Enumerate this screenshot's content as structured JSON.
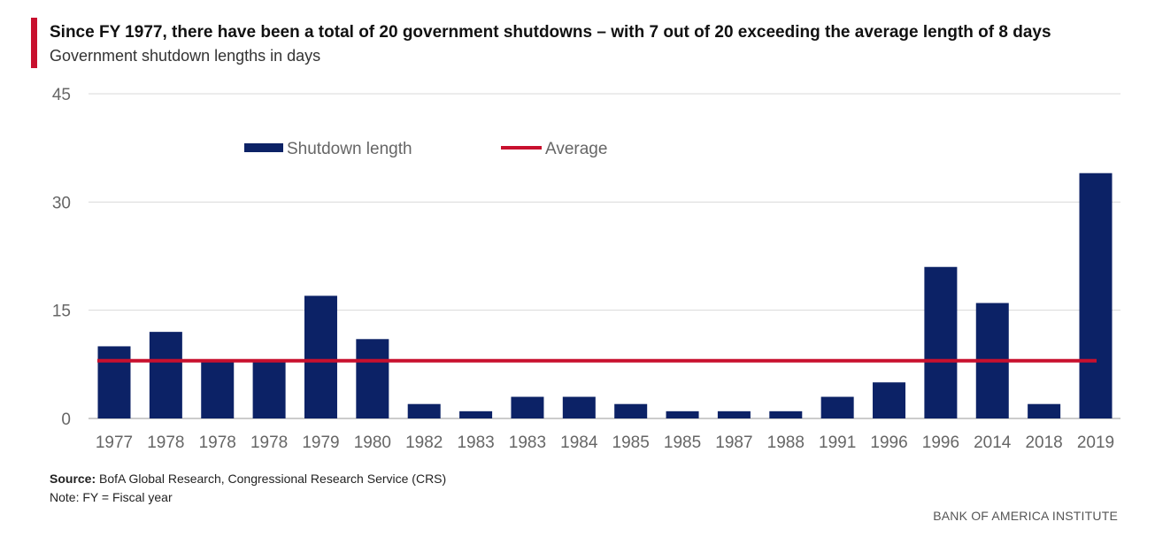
{
  "header": {
    "title": "Since FY 1977, there have been a total of 20 government shutdowns – with 7 out of 20 exceeding the average length of 8 days",
    "subtitle": "Government shutdown lengths in days"
  },
  "footer": {
    "source_label": "Source:",
    "source_text": " BofA Global Research, Congressional Research Service (CRS)",
    "note": "Note: FY = Fiscal year",
    "brand": "BANK OF AMERICA INSTITUTE"
  },
  "colors": {
    "bar": "#0c2266",
    "average": "#c8102e",
    "grid": "#d9d9d9",
    "axis_text": "#666666"
  },
  "chart_data": {
    "type": "bar",
    "title": "Since FY 1977, there have been a total of 20 government shutdowns – with 7 out of 20 exceeding the average length of 8 days",
    "subtitle": "Government shutdown lengths in days",
    "categories": [
      "1977",
      "1978",
      "1978",
      "1978",
      "1979",
      "1980",
      "1982",
      "1983",
      "1983",
      "1984",
      "1985",
      "1985",
      "1987",
      "1988",
      "1991",
      "1996",
      "1996",
      "2014",
      "2018",
      "2019"
    ],
    "series": [
      {
        "name": "Shutdown length",
        "type": "bar",
        "values": [
          10,
          12,
          8,
          8,
          17,
          11,
          2,
          1,
          3,
          3,
          2,
          1,
          1,
          1,
          3,
          5,
          21,
          16,
          2,
          34
        ]
      },
      {
        "name": "Average",
        "type": "line",
        "value": 8
      }
    ],
    "ylim": [
      0,
      45
    ],
    "yticks": [
      0,
      15,
      30,
      45
    ],
    "grid": true,
    "legend_position": "top-left"
  }
}
